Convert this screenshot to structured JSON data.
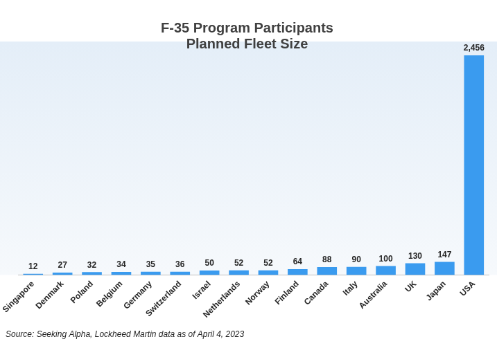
{
  "chart_data": {
    "type": "bar",
    "title": "F-35 Program Participants",
    "subtitle": "Planned Fleet Size",
    "annotations": [
      "Source: Seeking Alpha, Lockheed Martin data as of April 4, 2023"
    ],
    "categories": [
      "Singapore",
      "Denmark",
      "Poland",
      "Belgium",
      "Germany",
      "Switzerland",
      "Israel",
      "Netherlands",
      "Norway",
      "Finland",
      "Canada",
      "Italy",
      "Australia",
      "UK",
      "Japan",
      "USA"
    ],
    "values": [
      12,
      27,
      32,
      34,
      35,
      36,
      50,
      52,
      52,
      64,
      88,
      90,
      100,
      130,
      147,
      2456
    ],
    "value_labels": [
      "12",
      "27",
      "32",
      "34",
      "35",
      "36",
      "50",
      "52",
      "52",
      "64",
      "88",
      "90",
      "100",
      "130",
      "147",
      "2,456"
    ],
    "color": "#3a9bef",
    "ylim": [
      0,
      2456
    ],
    "grid": false,
    "data_labels": true,
    "tick_labels": "x"
  }
}
